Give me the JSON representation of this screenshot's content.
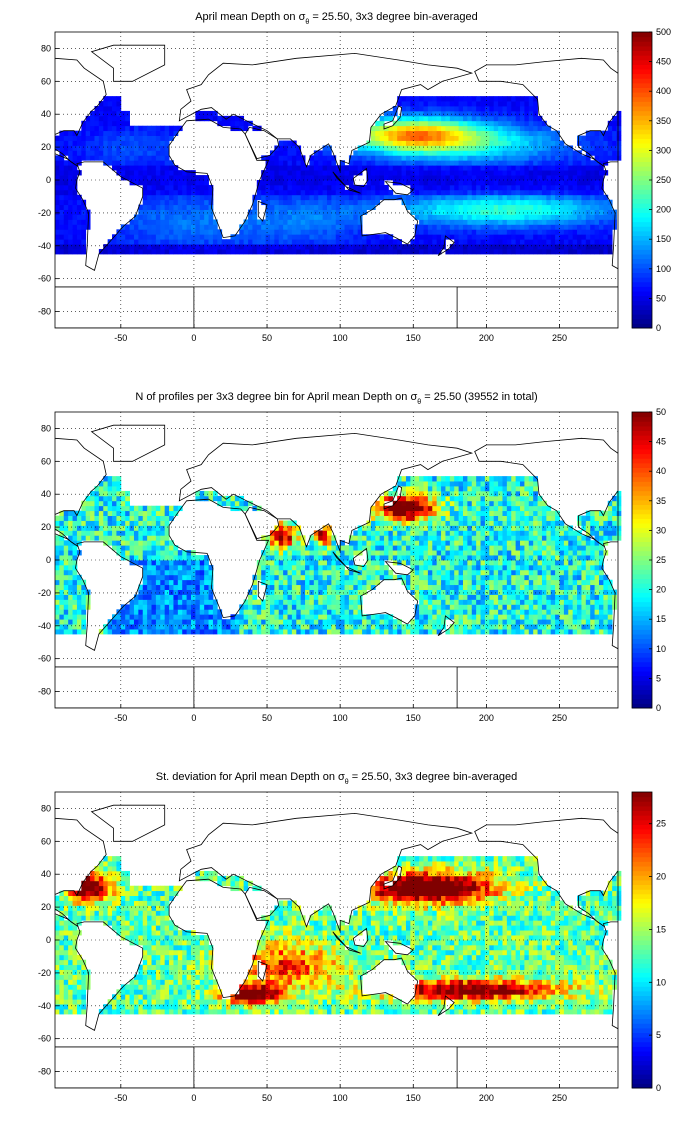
{
  "figure": {
    "background": "#ffffff",
    "panel_background": "#ffffff",
    "coastline_color": "#000000",
    "grid_style": "dotted",
    "colormap": "jet"
  },
  "chart_data": [
    {
      "type": "heatmap",
      "title_pre": "April mean Depth on ",
      "title_symbol": "σ",
      "title_sub": "θ",
      "title_post": " = 25.50, 3x3 degree bin-averaged",
      "xlim": [
        -95,
        290
      ],
      "ylim": [
        -90,
        90
      ],
      "xticks": [
        "-50",
        "0",
        "50",
        "100",
        "150",
        "200",
        "250"
      ],
      "yticks": [
        "80",
        "60",
        "40",
        "20",
        "0",
        "-20",
        "-40",
        "-60",
        "-80"
      ],
      "grid": true,
      "bin_size_deg": 3,
      "colorbar": {
        "clim": [
          0,
          500
        ],
        "ticks": [
          "500",
          "450",
          "400",
          "350",
          "300",
          "250",
          "200",
          "150",
          "100",
          "50",
          "0"
        ]
      },
      "field_description": "Deep (300-400) in NW Pacific subtropical gyre near 130-150E/20-35N, high (200-250) band along 20S in South Pacific, 100-150 in subtropical Atlantic and Indian Ocean, low near equator and high latitudes"
    },
    {
      "type": "heatmap",
      "title_pre": "N of profiles per 3x3 degree bin for April mean Depth on ",
      "title_symbol": "σ",
      "title_sub": "θ",
      "title_post": " = 25.50 (39552 in total)",
      "xlim": [
        -95,
        290
      ],
      "ylim": [
        -90,
        90
      ],
      "xticks": [
        "-50",
        "0",
        "50",
        "100",
        "150",
        "200",
        "250"
      ],
      "yticks": [
        "80",
        "60",
        "40",
        "20",
        "0",
        "-20",
        "-40",
        "-60",
        "-80"
      ],
      "grid": true,
      "bin_size_deg": 3,
      "colorbar": {
        "clim": [
          0,
          50
        ],
        "ticks": [
          "50",
          "45",
          "40",
          "35",
          "30",
          "25",
          "20",
          "15",
          "10",
          "5",
          "0"
        ]
      },
      "field_description": "Mostly 10-25 profiles per bin, saturated (50) near Japan / Kuroshio, Arabian Sea and Bay of Bengal; sparse in the South Atlantic"
    },
    {
      "type": "heatmap",
      "title_pre": "St. deviation for April mean Depth on ",
      "title_symbol": "σ",
      "title_sub": "θ",
      "title_post": " = 25.50, 3x3 degree bin-averaged",
      "xlim": [
        -95,
        290
      ],
      "ylim": [
        -90,
        90
      ],
      "xticks": [
        "-50",
        "0",
        "50",
        "100",
        "150",
        "200",
        "250"
      ],
      "yticks": [
        "80",
        "60",
        "40",
        "20",
        "0",
        "-20",
        "-40",
        "-60",
        "-80"
      ],
      "grid": true,
      "bin_size_deg": 3,
      "colorbar": {
        "clim": [
          0,
          28
        ],
        "ticks": [
          "25",
          "20",
          "15",
          "10",
          "5",
          "0"
        ]
      },
      "field_description": "High (>25) in Kuroshio extension 130-200E/20-40N, Gulf Stream, Agulhas and South Pacific 25-35S; 5-15 in tropics"
    }
  ]
}
